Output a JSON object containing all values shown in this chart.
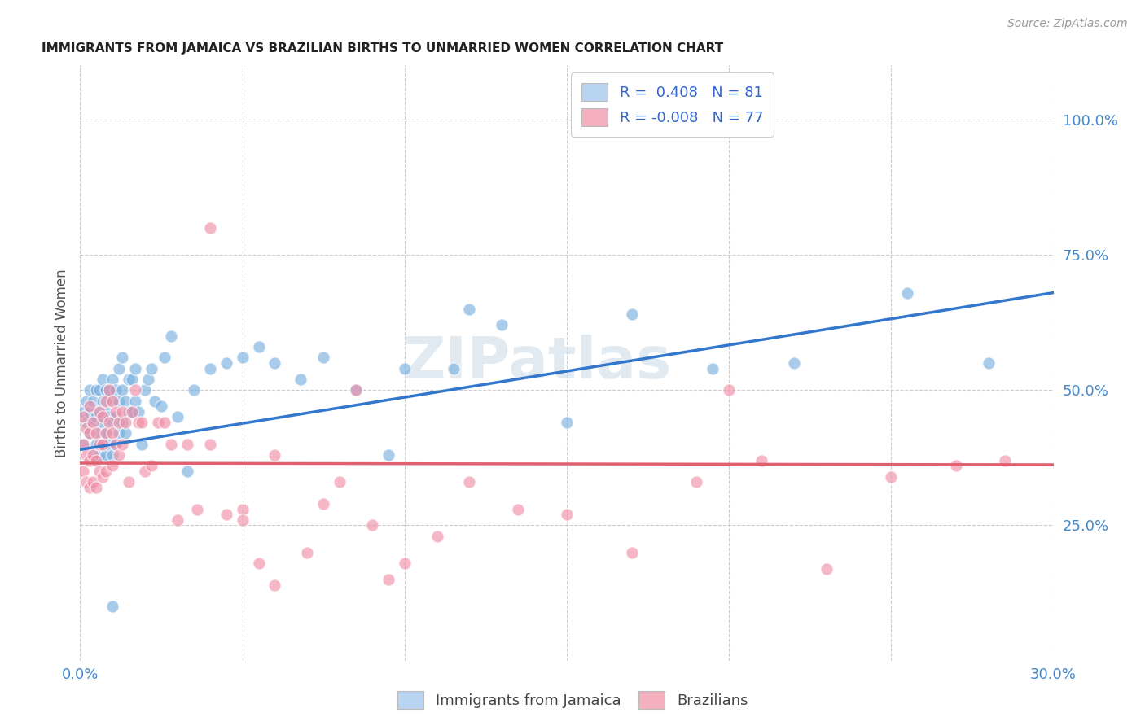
{
  "title": "IMMIGRANTS FROM JAMAICA VS BRAZILIAN BIRTHS TO UNMARRIED WOMEN CORRELATION CHART",
  "source": "Source: ZipAtlas.com",
  "ylabel": "Births to Unmarried Women",
  "y_ticks": [
    "25.0%",
    "50.0%",
    "75.0%",
    "100.0%"
  ],
  "y_tick_vals": [
    0.25,
    0.5,
    0.75,
    1.0
  ],
  "watermark": "ZIPatlas",
  "legend_1_label": "R =  0.408   N = 81",
  "legend_2_label": "R = -0.008   N = 77",
  "legend_1_color": "#b8d4f0",
  "legend_2_color": "#f5b0c0",
  "scatter_blue_color": "#7ab0e0",
  "scatter_pink_color": "#f090a8",
  "line_blue_color": "#3377cc",
  "line_pink_color": "#e06070",
  "background_color": "#ffffff",
  "grid_color": "#cccccc",
  "title_color": "#222222",
  "axis_label_color": "#4488cc",
  "xlim": [
    0.0,
    0.3
  ],
  "ylim": [
    0.0,
    1.1
  ],
  "blue_scatter_x": [
    0.001,
    0.001,
    0.002,
    0.002,
    0.003,
    0.003,
    0.003,
    0.004,
    0.004,
    0.004,
    0.005,
    0.005,
    0.005,
    0.006,
    0.006,
    0.006,
    0.006,
    0.007,
    0.007,
    0.007,
    0.007,
    0.008,
    0.008,
    0.008,
    0.008,
    0.009,
    0.009,
    0.009,
    0.01,
    0.01,
    0.01,
    0.01,
    0.011,
    0.011,
    0.011,
    0.012,
    0.012,
    0.012,
    0.013,
    0.013,
    0.013,
    0.014,
    0.014,
    0.015,
    0.015,
    0.016,
    0.016,
    0.017,
    0.017,
    0.018,
    0.019,
    0.02,
    0.021,
    0.022,
    0.023,
    0.025,
    0.026,
    0.028,
    0.03,
    0.033,
    0.035,
    0.04,
    0.045,
    0.05,
    0.055,
    0.06,
    0.068,
    0.075,
    0.085,
    0.095,
    0.1,
    0.115,
    0.13,
    0.15,
    0.17,
    0.195,
    0.22,
    0.255,
    0.28,
    0.12,
    0.01
  ],
  "blue_scatter_y": [
    0.4,
    0.46,
    0.44,
    0.48,
    0.42,
    0.46,
    0.5,
    0.38,
    0.44,
    0.48,
    0.4,
    0.45,
    0.5,
    0.38,
    0.42,
    0.46,
    0.5,
    0.4,
    0.44,
    0.48,
    0.52,
    0.38,
    0.42,
    0.46,
    0.5,
    0.4,
    0.45,
    0.5,
    0.38,
    0.44,
    0.48,
    0.52,
    0.4,
    0.45,
    0.5,
    0.42,
    0.48,
    0.54,
    0.44,
    0.5,
    0.56,
    0.42,
    0.48,
    0.46,
    0.52,
    0.46,
    0.52,
    0.48,
    0.54,
    0.46,
    0.4,
    0.5,
    0.52,
    0.54,
    0.48,
    0.47,
    0.56,
    0.6,
    0.45,
    0.35,
    0.5,
    0.54,
    0.55,
    0.56,
    0.58,
    0.55,
    0.52,
    0.56,
    0.5,
    0.38,
    0.54,
    0.54,
    0.62,
    0.44,
    0.64,
    0.54,
    0.55,
    0.68,
    0.55,
    0.65,
    0.1
  ],
  "pink_scatter_x": [
    0.001,
    0.001,
    0.001,
    0.002,
    0.002,
    0.002,
    0.003,
    0.003,
    0.003,
    0.003,
    0.004,
    0.004,
    0.004,
    0.005,
    0.005,
    0.005,
    0.006,
    0.006,
    0.006,
    0.007,
    0.007,
    0.007,
    0.008,
    0.008,
    0.008,
    0.009,
    0.009,
    0.01,
    0.01,
    0.01,
    0.011,
    0.011,
    0.012,
    0.012,
    0.013,
    0.013,
    0.014,
    0.015,
    0.016,
    0.017,
    0.018,
    0.019,
    0.02,
    0.022,
    0.024,
    0.026,
    0.028,
    0.03,
    0.033,
    0.036,
    0.04,
    0.045,
    0.05,
    0.055,
    0.06,
    0.07,
    0.08,
    0.09,
    0.1,
    0.11,
    0.12,
    0.135,
    0.15,
    0.17,
    0.19,
    0.21,
    0.23,
    0.25,
    0.27,
    0.285,
    0.04,
    0.05,
    0.06,
    0.075,
    0.085,
    0.095,
    0.2
  ],
  "pink_scatter_y": [
    0.35,
    0.4,
    0.45,
    0.33,
    0.38,
    0.43,
    0.32,
    0.37,
    0.42,
    0.47,
    0.33,
    0.38,
    0.44,
    0.32,
    0.37,
    0.42,
    0.35,
    0.4,
    0.46,
    0.34,
    0.4,
    0.45,
    0.35,
    0.42,
    0.48,
    0.44,
    0.5,
    0.36,
    0.42,
    0.48,
    0.4,
    0.46,
    0.38,
    0.44,
    0.4,
    0.46,
    0.44,
    0.33,
    0.46,
    0.5,
    0.44,
    0.44,
    0.35,
    0.36,
    0.44,
    0.44,
    0.4,
    0.26,
    0.4,
    0.28,
    0.4,
    0.27,
    0.28,
    0.18,
    0.38,
    0.2,
    0.33,
    0.25,
    0.18,
    0.23,
    0.33,
    0.28,
    0.27,
    0.2,
    0.33,
    0.37,
    0.17,
    0.34,
    0.36,
    0.37,
    0.8,
    0.26,
    0.14,
    0.29,
    0.5,
    0.15,
    0.5
  ],
  "blue_line_x": [
    0.0,
    0.3
  ],
  "blue_line_y": [
    0.39,
    0.68
  ],
  "pink_line_x": [
    0.0,
    0.3
  ],
  "pink_line_y": [
    0.365,
    0.362
  ]
}
